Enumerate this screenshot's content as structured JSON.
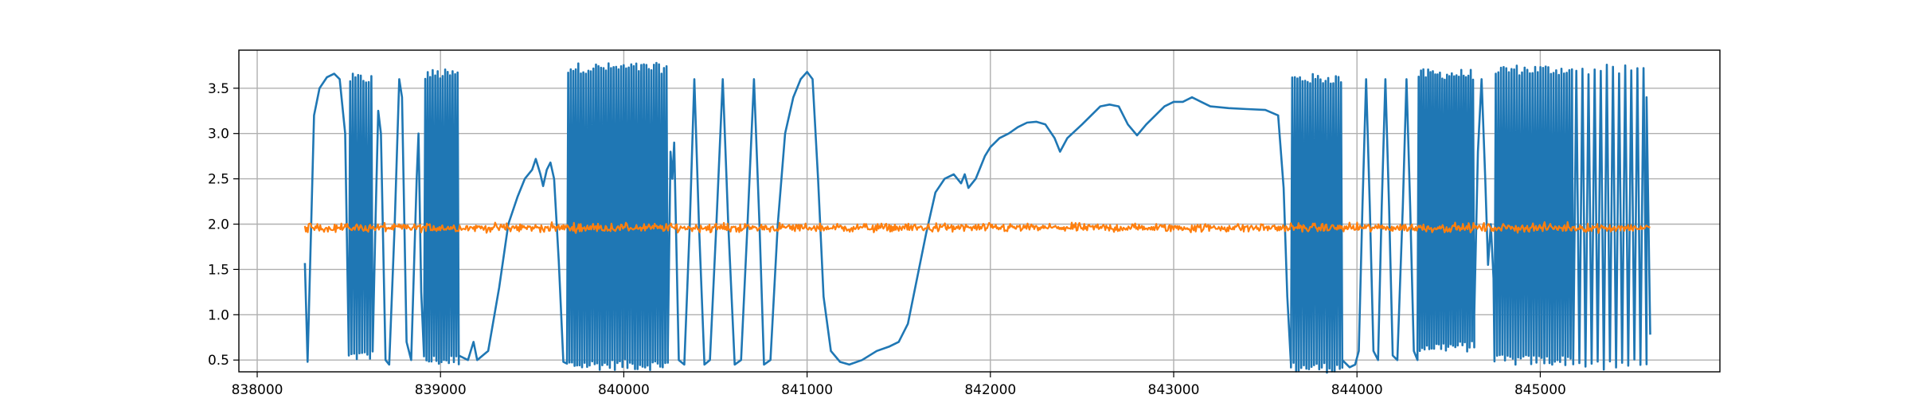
{
  "chart_data": {
    "type": "line",
    "title": "",
    "xlabel": "",
    "ylabel": "",
    "xlim": [
      837900,
      845980
    ],
    "ylim": [
      0.37,
      3.92
    ],
    "grid": true,
    "legend": "none",
    "x_ticks": [
      838000,
      839000,
      840000,
      841000,
      842000,
      843000,
      844000,
      845000
    ],
    "x_tick_labels": [
      "838000",
      "839000",
      "840000",
      "841000",
      "842000",
      "843000",
      "844000",
      "845000"
    ],
    "y_ticks": [
      0.5,
      1.0,
      1.5,
      2.0,
      2.5,
      3.0,
      3.5
    ],
    "y_tick_labels": [
      "0.5",
      "1.0",
      "1.5",
      "2.0",
      "2.5",
      "3.0",
      "3.5"
    ],
    "series": [
      {
        "color": "#1f77b4",
        "segments": [
          {
            "kind": "points",
            "pts": [
              [
                838260,
                1.57
              ],
              [
                838275,
                0.48
              ],
              [
                838310,
                3.2
              ],
              [
                838340,
                3.5
              ],
              [
                838380,
                3.62
              ],
              [
                838420,
                3.66
              ],
              [
                838450,
                3.6
              ],
              [
                838480,
                3.0
              ],
              [
                838500,
                0.55
              ]
            ]
          },
          {
            "kind": "osc",
            "x0": 838500,
            "x1": 838630,
            "n": 9,
            "lo": 0.55,
            "hi": 3.6
          },
          {
            "kind": "points",
            "pts": [
              [
                838630,
                0.6
              ],
              [
                838645,
                2.0
              ],
              [
                838660,
                3.25
              ],
              [
                838675,
                3.0
              ],
              [
                838700,
                0.5
              ],
              [
                838720,
                0.45
              ],
              [
                838750,
                2.0
              ],
              [
                838775,
                3.6
              ],
              [
                838790,
                3.4
              ],
              [
                838815,
                0.7
              ],
              [
                838840,
                0.5
              ],
              [
                838870,
                2.5
              ],
              [
                838880,
                3.0
              ],
              [
                838895,
                1.25
              ],
              [
                838910,
                0.55
              ]
            ]
          },
          {
            "kind": "osc",
            "x0": 838910,
            "x1": 839100,
            "n": 14,
            "lo": 0.5,
            "hi": 3.65
          },
          {
            "kind": "points",
            "pts": [
              [
                839100,
                0.55
              ],
              [
                839150,
                0.5
              ],
              [
                839180,
                0.7
              ],
              [
                839200,
                0.5
              ],
              [
                839260,
                0.6
              ],
              [
                839320,
                1.3
              ],
              [
                839370,
                2.0
              ],
              [
                839420,
                2.3
              ],
              [
                839460,
                2.5
              ],
              [
                839500,
                2.6
              ],
              [
                839520,
                2.72
              ],
              [
                839545,
                2.55
              ],
              [
                839560,
                2.42
              ],
              [
                839580,
                2.6
              ],
              [
                839600,
                2.68
              ],
              [
                839620,
                2.5
              ],
              [
                839645,
                1.6
              ],
              [
                839670,
                0.48
              ]
            ]
          },
          {
            "kind": "osc",
            "x0": 839690,
            "x1": 840240,
            "n": 40,
            "lo": 0.45,
            "hi": 3.72
          },
          {
            "kind": "points",
            "pts": [
              [
                840240,
                0.6
              ],
              [
                840255,
                2.8
              ],
              [
                840265,
                2.5
              ],
              [
                840275,
                2.9
              ],
              [
                840300,
                0.5
              ],
              [
                840330,
                0.45
              ],
              [
                840360,
                2.0
              ],
              [
                840385,
                3.6
              ],
              [
                840410,
                2.0
              ],
              [
                840440,
                0.45
              ],
              [
                840470,
                0.5
              ],
              [
                840505,
                2.0
              ],
              [
                840540,
                3.6
              ],
              [
                840570,
                2.0
              ],
              [
                840605,
                0.45
              ],
              [
                840640,
                0.5
              ],
              [
                840675,
                2.0
              ],
              [
                840710,
                3.6
              ],
              [
                840740,
                2.0
              ],
              [
                840765,
                0.45
              ],
              [
                840800,
                0.5
              ],
              [
                840840,
                2.0
              ],
              [
                840880,
                3.0
              ],
              [
                840925,
                3.4
              ],
              [
                840965,
                3.6
              ],
              [
                841000,
                3.68
              ],
              [
                841030,
                3.6
              ],
              [
                841060,
                2.5
              ],
              [
                841090,
                1.2
              ],
              [
                841130,
                0.6
              ],
              [
                841180,
                0.48
              ],
              [
                841230,
                0.45
              ],
              [
                841300,
                0.5
              ],
              [
                841380,
                0.6
              ],
              [
                841450,
                0.65
              ],
              [
                841500,
                0.7
              ],
              [
                841550,
                0.9
              ],
              [
                841600,
                1.4
              ],
              [
                841650,
                1.9
              ],
              [
                841700,
                2.35
              ],
              [
                841750,
                2.5
              ],
              [
                841800,
                2.55
              ],
              [
                841840,
                2.45
              ],
              [
                841860,
                2.55
              ],
              [
                841880,
                2.4
              ],
              [
                841920,
                2.5
              ],
              [
                841970,
                2.75
              ],
              [
                842000,
                2.85
              ],
              [
                842050,
                2.95
              ],
              [
                842100,
                3.0
              ],
              [
                842150,
                3.07
              ],
              [
                842200,
                3.12
              ],
              [
                842250,
                3.13
              ],
              [
                842300,
                3.1
              ],
              [
                842350,
                2.95
              ],
              [
                842380,
                2.8
              ],
              [
                842420,
                2.95
              ],
              [
                842500,
                3.1
              ],
              [
                842550,
                3.2
              ],
              [
                842600,
                3.3
              ],
              [
                842650,
                3.32
              ],
              [
                842700,
                3.3
              ],
              [
                842750,
                3.1
              ],
              [
                842800,
                2.98
              ],
              [
                842850,
                3.1
              ],
              [
                842900,
                3.2
              ],
              [
                842950,
                3.3
              ],
              [
                843000,
                3.35
              ],
              [
                843050,
                3.35
              ],
              [
                843100,
                3.4
              ],
              [
                843150,
                3.35
              ],
              [
                843200,
                3.3
              ],
              [
                843300,
                3.28
              ],
              [
                843400,
                3.27
              ],
              [
                843500,
                3.26
              ],
              [
                843570,
                3.2
              ],
              [
                843600,
                2.4
              ],
              [
                843620,
                1.2
              ],
              [
                843640,
                0.45
              ]
            ]
          },
          {
            "kind": "osc",
            "x0": 843640,
            "x1": 843920,
            "n": 20,
            "lo": 0.42,
            "hi": 3.6
          },
          {
            "kind": "points",
            "pts": [
              [
                843920,
                0.5
              ],
              [
                843960,
                0.42
              ],
              [
                843990,
                0.45
              ],
              [
                844010,
                0.6
              ],
              [
                844030,
                2.2
              ],
              [
                844050,
                3.6
              ],
              [
                844070,
                2.2
              ],
              [
                844090,
                0.6
              ],
              [
                844115,
                0.5
              ],
              [
                844135,
                2.2
              ],
              [
                844155,
                3.6
              ],
              [
                844175,
                2.2
              ],
              [
                844195,
                0.55
              ],
              [
                844220,
                0.5
              ],
              [
                844250,
                2.2
              ],
              [
                844270,
                3.6
              ],
              [
                844290,
                2.2
              ],
              [
                844310,
                0.6
              ],
              [
                844330,
                0.5
              ]
            ]
          },
          {
            "kind": "osc",
            "x0": 844330,
            "x1": 844640,
            "n": 24,
            "lo": 0.65,
            "hi": 3.65
          },
          {
            "kind": "points",
            "pts": [
              [
                844640,
                1.0
              ],
              [
                844660,
                2.8
              ],
              [
                844680,
                3.6
              ],
              [
                844700,
                2.5
              ],
              [
                844715,
                1.55
              ],
              [
                844730,
                2.0
              ],
              [
                844745,
                1.4
              ]
            ]
          },
          {
            "kind": "osc",
            "x0": 844750,
            "x1": 845180,
            "n": 30,
            "lo": 0.5,
            "hi": 3.7
          },
          {
            "kind": "osc",
            "x0": 845180,
            "x1": 845580,
            "n": 12,
            "lo": 0.45,
            "hi": 3.7
          },
          {
            "kind": "points",
            "pts": [
              [
                845580,
                3.4
              ],
              [
                845600,
                0.78
              ]
            ]
          }
        ]
      },
      {
        "color": "#ff7f0e",
        "segments": [
          {
            "kind": "noise",
            "x0": 838260,
            "x1": 845600,
            "mean": 1.96,
            "amp": 0.07,
            "n": 1400
          }
        ]
      }
    ]
  }
}
